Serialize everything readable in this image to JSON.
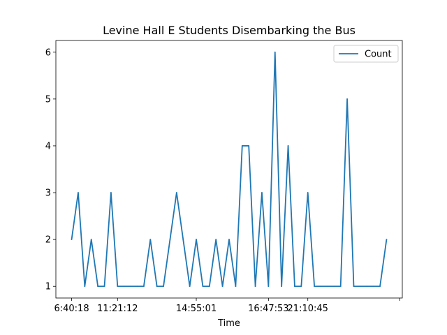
{
  "chart_data": {
    "type": "line",
    "title": "Levine Hall E Students Disembarking the Bus",
    "xlabel": "Time",
    "ylabel": "",
    "x_tick_labels": [
      "6:40:18",
      "11:21:12",
      "14:55:01",
      "16:47:53",
      "21:10:45",
      ""
    ],
    "x_tick_index": [
      0,
      7,
      19,
      30,
      36,
      50
    ],
    "y_ticks": [
      1,
      2,
      3,
      4,
      5,
      6
    ],
    "ylim": [
      0.75,
      6.25
    ],
    "xlim": [
      -2.4,
      50.4
    ],
    "legend_placement": "top-right",
    "grid": false,
    "series": [
      {
        "name": "Count",
        "color": "#1f77b4",
        "values": [
          2,
          3,
          1,
          2,
          1,
          1,
          3,
          1,
          1,
          1,
          1,
          1,
          2,
          1,
          1,
          2,
          3,
          2,
          1,
          2,
          1,
          1,
          2,
          1,
          2,
          1,
          4,
          4,
          1,
          3,
          1,
          6,
          1,
          4,
          1,
          1,
          3,
          1,
          1,
          1,
          1,
          1,
          5,
          1,
          1,
          1,
          1,
          1,
          2
        ]
      }
    ]
  }
}
